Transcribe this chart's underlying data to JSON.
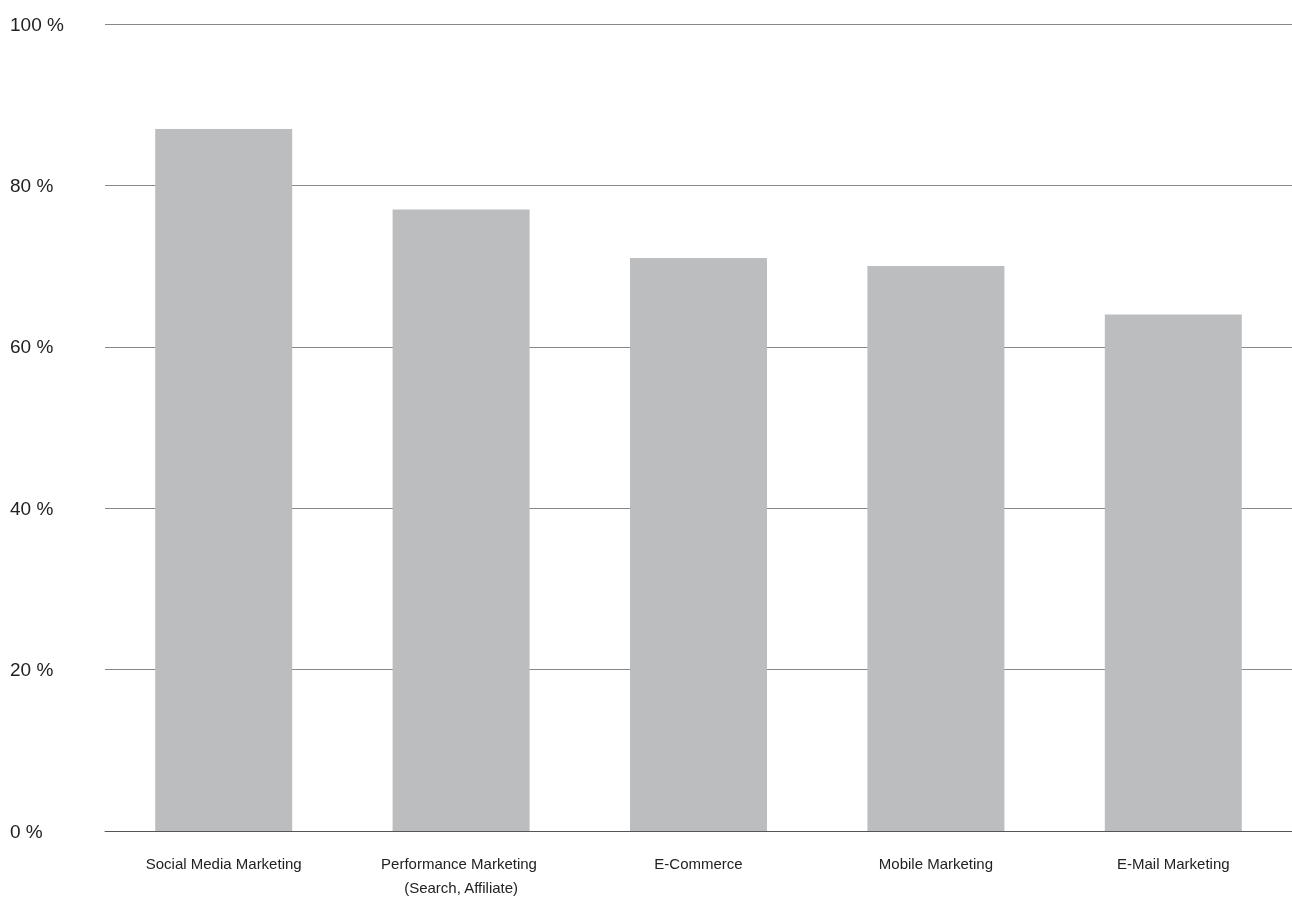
{
  "chart_data": {
    "type": "bar",
    "categories": [
      "Social Media Marketing",
      "Performance Marketing (Search, Affiliate)",
      "E-Commerce",
      "Mobile Marketing",
      "E-Mail Marketing"
    ],
    "values": [
      87,
      77,
      71,
      70,
      64
    ],
    "color": "#bcbdbf",
    "ylim": [
      0,
      100
    ],
    "yticks": [
      {
        "value": 0,
        "label": "0 %"
      },
      {
        "value": 20,
        "label": "20 %"
      },
      {
        "value": 40,
        "label": "40 %"
      },
      {
        "value": 60,
        "label": "60 %"
      },
      {
        "value": 80,
        "label": "80 %"
      },
      {
        "value": 100,
        "label": "100 %"
      }
    ],
    "grid": "y"
  }
}
